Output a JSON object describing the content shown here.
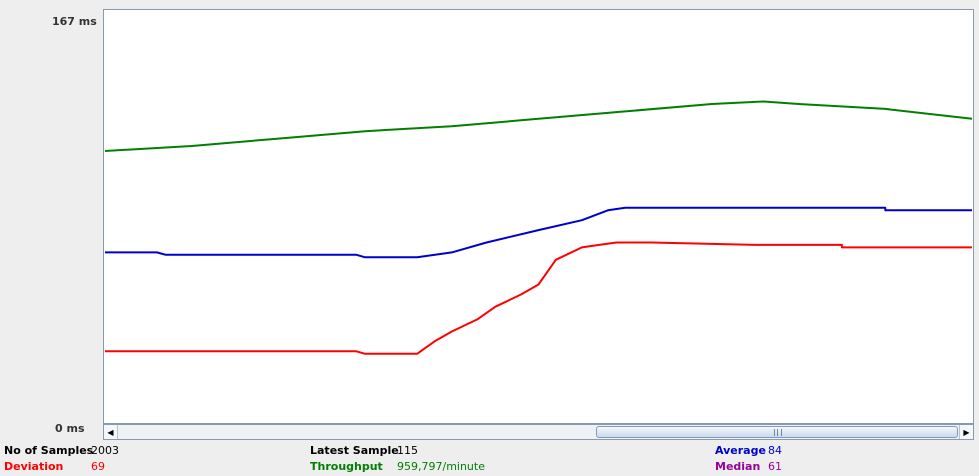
{
  "axis": {
    "y_max_label": "167  ms",
    "y_min_label": "0  ms"
  },
  "colors": {
    "samples": "#000000",
    "latest": "#000000",
    "average": "#0000cc",
    "deviation": "#ff0000",
    "throughput": "#008000",
    "median": "#990099"
  },
  "stats": {
    "samples_label": "No of Samples",
    "samples_value": "2003",
    "latest_label": "Latest Sample",
    "latest_value": "115",
    "average_label": "Average",
    "average_value": "84",
    "deviation_label": "Deviation",
    "deviation_value": "69",
    "throughput_label": "Throughput",
    "throughput_value": "959,797/minute",
    "median_label": "Median",
    "median_value": "61"
  },
  "chart_data": {
    "type": "line",
    "ylim": [
      0,
      167
    ],
    "x_range": [
      0,
      1
    ],
    "series": [
      {
        "key": "throughput",
        "color": "#008000",
        "points": [
          [
            0,
            110
          ],
          [
            0.1,
            112
          ],
          [
            0.2,
            115
          ],
          [
            0.3,
            118
          ],
          [
            0.4,
            120
          ],
          [
            0.5,
            123
          ],
          [
            0.6,
            126
          ],
          [
            0.7,
            129
          ],
          [
            0.76,
            130
          ],
          [
            0.8,
            129
          ],
          [
            0.9,
            127
          ],
          [
            1.0,
            123
          ]
        ]
      },
      {
        "key": "average",
        "color": "#0000cc",
        "points": [
          [
            0,
            69
          ],
          [
            0.06,
            69
          ],
          [
            0.07,
            68
          ],
          [
            0.29,
            68
          ],
          [
            0.3,
            67
          ],
          [
            0.36,
            67
          ],
          [
            0.4,
            69
          ],
          [
            0.44,
            73
          ],
          [
            0.5,
            78
          ],
          [
            0.55,
            82
          ],
          [
            0.58,
            86
          ],
          [
            0.6,
            87
          ],
          [
            0.83,
            87
          ],
          [
            0.9,
            87
          ],
          [
            0.9,
            86
          ],
          [
            1.0,
            86
          ]
        ]
      },
      {
        "key": "deviation",
        "color": "#ff0000",
        "points": [
          [
            0,
            29
          ],
          [
            0.29,
            29
          ],
          [
            0.3,
            28
          ],
          [
            0.36,
            28
          ],
          [
            0.38,
            33
          ],
          [
            0.4,
            37
          ],
          [
            0.43,
            42
          ],
          [
            0.45,
            47
          ],
          [
            0.48,
            52
          ],
          [
            0.5,
            56
          ],
          [
            0.52,
            66
          ],
          [
            0.55,
            71
          ],
          [
            0.57,
            72
          ],
          [
            0.59,
            73
          ],
          [
            0.63,
            73
          ],
          [
            0.75,
            72
          ],
          [
            0.85,
            72
          ],
          [
            0.85,
            71
          ],
          [
            1.0,
            71
          ]
        ]
      }
    ]
  }
}
